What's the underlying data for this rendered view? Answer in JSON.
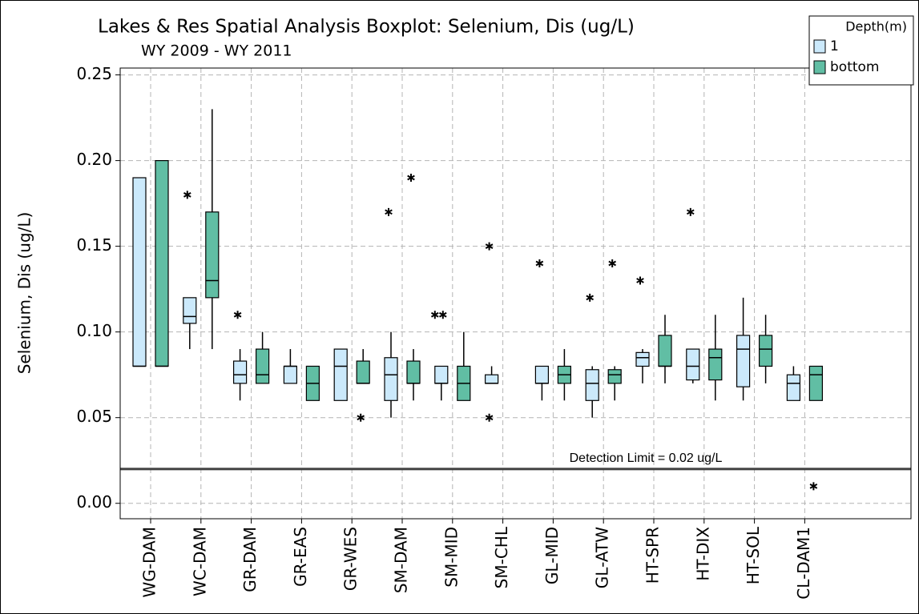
{
  "chart_data": {
    "type": "boxplot",
    "title": "Lakes & Res Spatial Analysis Boxplot: Selenium, Dis (ug/L)",
    "subtitle": "WY 2009 - WY 2011",
    "y_label": "Selenium, Dis (ug/L)",
    "categories": [
      "WG-DAM",
      "WC-DAM",
      "GR-DAM",
      "GR-EAS",
      "GR-WES",
      "SM-DAM",
      "SM-MID",
      "SM-CHL",
      "GL-MID",
      "GL-ATW",
      "HT-SPR",
      "HT-DIX",
      "HT-SOL",
      "CL-DAM1"
    ],
    "legend_title": "Depth(m)",
    "legend_position": "top-right",
    "grid": true,
    "ylim": [
      -0.009,
      0.254
    ],
    "yticks": [
      {
        "value": 0,
        "label": "0.00"
      },
      {
        "value": 0.05,
        "label": "0.05"
      },
      {
        "value": 0.1,
        "label": "0.10"
      },
      {
        "value": 0.15,
        "label": "0.15"
      },
      {
        "value": 0.2,
        "label": "0.20"
      },
      {
        "value": 0.25,
        "label": "0.25"
      }
    ],
    "reference_line": {
      "value": 0.02,
      "label": "Detection Limit = 0.02 ug/L"
    },
    "series": [
      {
        "name": "1",
        "color": "#cbe9fb",
        "boxes": [
          {
            "min": 0.08,
            "q1": 0.08,
            "median": 0.08,
            "q3": 0.19,
            "max": 0.19,
            "outliers": []
          },
          {
            "min": 0.09,
            "q1": 0.105,
            "median": 0.109,
            "q3": 0.12,
            "max": 0.12,
            "outliers": [
              0.18
            ]
          },
          {
            "min": 0.06,
            "q1": 0.07,
            "median": 0.075,
            "q3": 0.083,
            "max": 0.09,
            "outliers": [
              0.11
            ]
          },
          {
            "min": 0.07,
            "q1": 0.07,
            "median": 0.08,
            "q3": 0.08,
            "max": 0.09,
            "outliers": []
          },
          {
            "min": 0.06,
            "q1": 0.06,
            "median": 0.08,
            "q3": 0.09,
            "max": 0.09,
            "outliers": []
          },
          {
            "min": 0.05,
            "q1": 0.06,
            "median": 0.075,
            "q3": 0.085,
            "max": 0.1,
            "outliers": [
              0.17
            ]
          },
          {
            "min": 0.06,
            "q1": 0.07,
            "median": 0.07,
            "q3": 0.08,
            "max": 0.08,
            "outliers": [
              0.11,
              0.11
            ]
          },
          {
            "min": 0.07,
            "q1": 0.07,
            "median": 0.07,
            "q3": 0.075,
            "max": 0.08,
            "outliers": [
              0.15,
              0.05
            ]
          },
          {
            "min": 0.06,
            "q1": 0.07,
            "median": 0.07,
            "q3": 0.08,
            "max": 0.08,
            "outliers": [
              0.14
            ]
          },
          {
            "min": 0.05,
            "q1": 0.06,
            "median": 0.07,
            "q3": 0.078,
            "max": 0.08,
            "outliers": [
              0.12
            ]
          },
          {
            "min": 0.07,
            "q1": 0.08,
            "median": 0.085,
            "q3": 0.088,
            "max": 0.09,
            "outliers": [
              0.13
            ]
          },
          {
            "min": 0.07,
            "q1": 0.072,
            "median": 0.08,
            "q3": 0.09,
            "max": 0.09,
            "outliers": [
              0.17
            ]
          },
          {
            "min": 0.06,
            "q1": 0.068,
            "median": 0.09,
            "q3": 0.098,
            "max": 0.12,
            "outliers": []
          },
          {
            "min": 0.06,
            "q1": 0.06,
            "median": 0.07,
            "q3": 0.075,
            "max": 0.08,
            "outliers": []
          }
        ]
      },
      {
        "name": "bottom",
        "color": "#61bea4",
        "boxes": [
          {
            "min": 0.08,
            "q1": 0.08,
            "median": 0.08,
            "q3": 0.2,
            "max": 0.2,
            "outliers": []
          },
          {
            "min": 0.09,
            "q1": 0.12,
            "median": 0.13,
            "q3": 0.17,
            "max": 0.23,
            "outliers": []
          },
          {
            "min": 0.07,
            "q1": 0.07,
            "median": 0.075,
            "q3": 0.09,
            "max": 0.1,
            "outliers": []
          },
          {
            "min": 0.06,
            "q1": 0.06,
            "median": 0.07,
            "q3": 0.08,
            "max": 0.08,
            "outliers": []
          },
          {
            "min": 0.07,
            "q1": 0.07,
            "median": 0.07,
            "q3": 0.083,
            "max": 0.09,
            "outliers": [
              0.05
            ]
          },
          {
            "min": 0.06,
            "q1": 0.07,
            "median": 0.07,
            "q3": 0.083,
            "max": 0.09,
            "outliers": [
              0.19
            ]
          },
          {
            "min": 0.06,
            "q1": 0.06,
            "median": 0.07,
            "q3": 0.08,
            "max": 0.1,
            "outliers": []
          },
          null,
          {
            "min": 0.06,
            "q1": 0.07,
            "median": 0.075,
            "q3": 0.08,
            "max": 0.09,
            "outliers": []
          },
          {
            "min": 0.06,
            "q1": 0.07,
            "median": 0.075,
            "q3": 0.078,
            "max": 0.08,
            "outliers": [
              0.14
            ]
          },
          {
            "min": 0.07,
            "q1": 0.08,
            "median": 0.08,
            "q3": 0.098,
            "max": 0.11,
            "outliers": []
          },
          {
            "min": 0.06,
            "q1": 0.072,
            "median": 0.085,
            "q3": 0.09,
            "max": 0.11,
            "outliers": []
          },
          {
            "min": 0.07,
            "q1": 0.08,
            "median": 0.09,
            "q3": 0.098,
            "max": 0.11,
            "outliers": []
          },
          {
            "min": 0.06,
            "q1": 0.06,
            "median": 0.075,
            "q3": 0.08,
            "max": 0.08,
            "outliers": [
              0.01
            ]
          }
        ]
      }
    ]
  }
}
